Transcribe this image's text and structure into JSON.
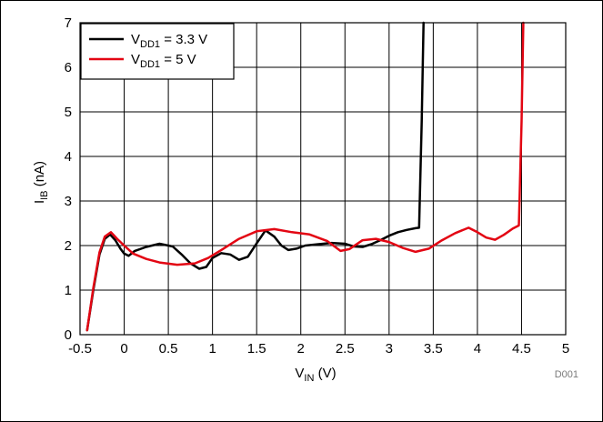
{
  "chart_data": {
    "type": "line",
    "xlabel": {
      "main": "V",
      "sub": "IN",
      "suffix": " (V)"
    },
    "ylabel": {
      "main": "I",
      "sub": "IB",
      "suffix": " (nA)"
    },
    "xlim": [
      -0.5,
      5
    ],
    "ylim": [
      0,
      7
    ],
    "x_ticks": [
      -0.5,
      0,
      0.5,
      1,
      1.5,
      2,
      2.5,
      3,
      3.5,
      4,
      4.5,
      5
    ],
    "x_tick_labels": [
      "-0.5",
      "0",
      "0.5",
      "1",
      "1.5",
      "2",
      "2.5",
      "3",
      "3.5",
      "4",
      "4.5",
      "5"
    ],
    "y_ticks": [
      0,
      1,
      2,
      3,
      4,
      5,
      6,
      7
    ],
    "y_tick_labels": [
      "0",
      "1",
      "2",
      "3",
      "4",
      "5",
      "6",
      "7"
    ],
    "grid": true,
    "legend_position": "top-left",
    "series": [
      {
        "name": "V_DD1 = 3.3 V",
        "legend": {
          "main": "V",
          "sub": "DD1",
          "suffix": " = 3.3 V"
        },
        "color": "#000000",
        "x": [
          -0.42,
          -0.35,
          -0.28,
          -0.22,
          -0.16,
          -0.1,
          -0.04,
          0.0,
          0.05,
          0.12,
          0.25,
          0.4,
          0.55,
          0.65,
          0.75,
          0.85,
          0.93,
          1.0,
          1.1,
          1.2,
          1.3,
          1.4,
          1.5,
          1.6,
          1.7,
          1.78,
          1.86,
          1.95,
          2.05,
          2.2,
          2.35,
          2.5,
          2.6,
          2.7,
          2.8,
          2.9,
          3.0,
          3.1,
          3.2,
          3.3,
          3.34,
          3.37,
          3.39
        ],
        "y": [
          0.1,
          1.0,
          1.8,
          2.15,
          2.25,
          2.12,
          1.92,
          1.82,
          1.77,
          1.88,
          1.97,
          2.04,
          1.98,
          1.8,
          1.6,
          1.48,
          1.52,
          1.72,
          1.83,
          1.8,
          1.68,
          1.75,
          2.05,
          2.34,
          2.2,
          2.0,
          1.9,
          1.93,
          2.0,
          2.03,
          2.06,
          2.04,
          1.98,
          1.97,
          2.03,
          2.12,
          2.22,
          2.3,
          2.35,
          2.39,
          2.4,
          4.8,
          7.0
        ]
      },
      {
        "name": "V_DD1 = 5 V",
        "legend": {
          "main": "V",
          "sub": "DD1",
          "suffix": " = 5 V"
        },
        "color": "#e30613",
        "x": [
          -0.42,
          -0.35,
          -0.28,
          -0.22,
          -0.15,
          -0.08,
          0.0,
          0.1,
          0.25,
          0.4,
          0.6,
          0.8,
          0.95,
          1.1,
          1.3,
          1.5,
          1.7,
          1.9,
          2.1,
          2.3,
          2.45,
          2.55,
          2.7,
          2.85,
          3.0,
          3.15,
          3.3,
          3.45,
          3.6,
          3.75,
          3.9,
          4.0,
          4.1,
          4.2,
          4.3,
          4.4,
          4.47,
          4.5,
          4.52
        ],
        "y": [
          0.1,
          1.05,
          1.85,
          2.2,
          2.3,
          2.15,
          2.0,
          1.82,
          1.7,
          1.62,
          1.57,
          1.6,
          1.72,
          1.9,
          2.15,
          2.32,
          2.37,
          2.3,
          2.25,
          2.1,
          1.88,
          1.92,
          2.12,
          2.15,
          2.08,
          1.95,
          1.86,
          1.93,
          2.12,
          2.28,
          2.4,
          2.3,
          2.18,
          2.13,
          2.24,
          2.38,
          2.45,
          4.8,
          7.0
        ]
      }
    ],
    "annotation": "D001"
  }
}
